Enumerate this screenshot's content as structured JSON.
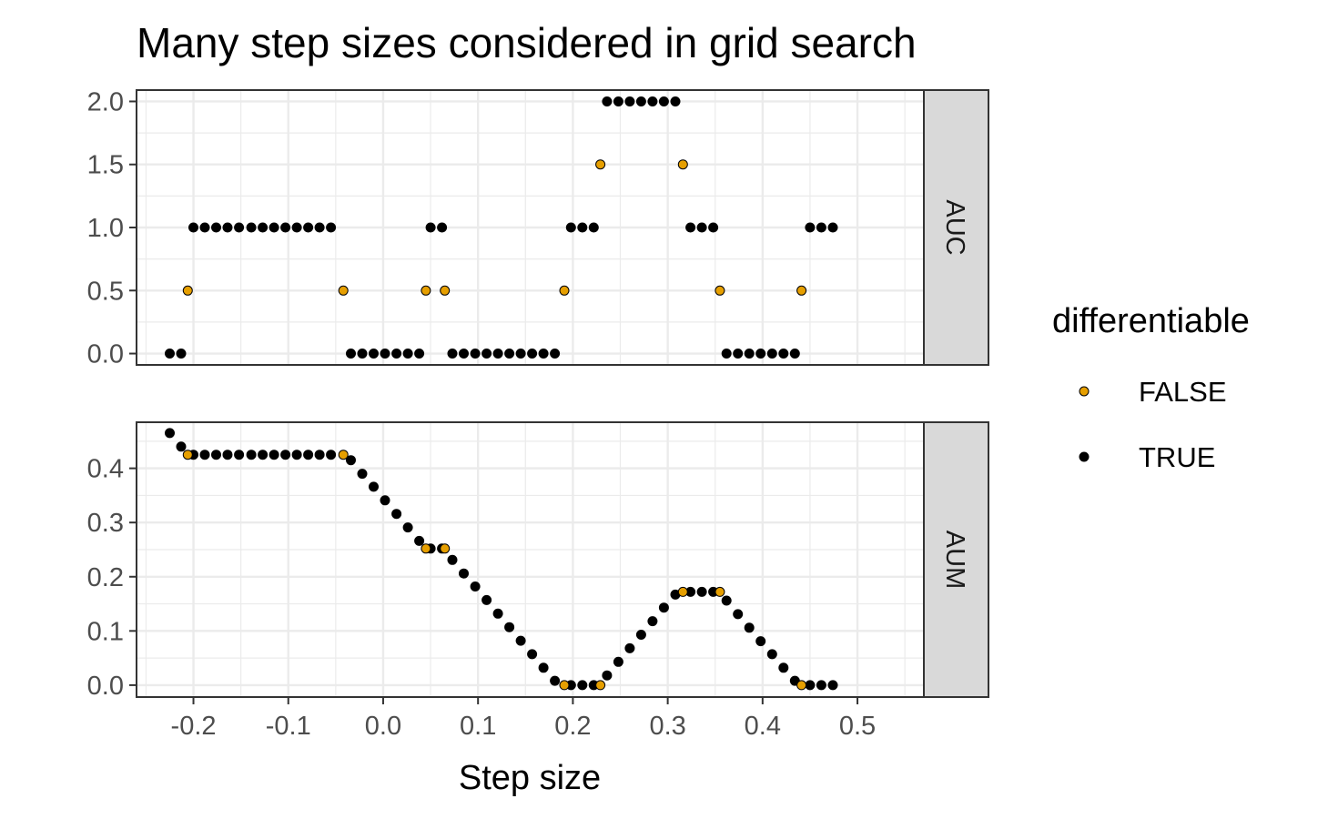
{
  "chart_data": {
    "type": "scatter",
    "title": "Many step sizes considered in grid search",
    "xlabel": "Step size",
    "xlim": [
      -0.26,
      0.57
    ],
    "x_ticks": [
      -0.2,
      -0.1,
      0.0,
      0.1,
      0.2,
      0.3,
      0.4,
      0.5
    ],
    "x_tick_labels": [
      "-0.2",
      "-0.1",
      "0.0",
      "0.1",
      "0.2",
      "0.3",
      "0.4",
      "0.5"
    ],
    "grid": true,
    "legend": {
      "title": "differentiable",
      "placement": "right",
      "entries": [
        {
          "label": "FALSE",
          "color": "#E69F00"
        },
        {
          "label": "TRUE",
          "color": "#000000"
        }
      ]
    },
    "panels": [
      {
        "strip": "AUC",
        "ylim": [
          -0.09,
          2.09
        ],
        "y_ticks": [
          0.0,
          0.5,
          1.0,
          1.5,
          2.0
        ],
        "y_tick_labels": [
          "0.0",
          "0.5",
          "1.0",
          "1.5",
          "2.0"
        ],
        "series": [
          {
            "name": "FALSE",
            "points": [
              [
                -0.206,
                0.5
              ],
              [
                -0.042,
                0.5
              ],
              [
                0.045,
                0.5
              ],
              [
                0.065,
                0.5
              ],
              [
                0.191,
                0.5
              ],
              [
                0.229,
                1.5
              ],
              [
                0.316,
                1.5
              ],
              [
                0.355,
                0.5
              ],
              [
                0.441,
                0.5
              ]
            ]
          },
          {
            "name": "TRUE",
            "points": [
              [
                -0.225,
                0.0
              ],
              [
                -0.213,
                0.0
              ],
              [
                -0.2,
                1.0
              ],
              [
                -0.188,
                1.0
              ],
              [
                -0.176,
                1.0
              ],
              [
                -0.164,
                1.0
              ],
              [
                -0.152,
                1.0
              ],
              [
                -0.139,
                1.0
              ],
              [
                -0.127,
                1.0
              ],
              [
                -0.115,
                1.0
              ],
              [
                -0.103,
                1.0
              ],
              [
                -0.091,
                1.0
              ],
              [
                -0.079,
                1.0
              ],
              [
                -0.067,
                1.0
              ],
              [
                -0.055,
                1.0
              ],
              [
                -0.034,
                0.0
              ],
              [
                -0.022,
                0.0
              ],
              [
                -0.01,
                0.0
              ],
              [
                0.002,
                0.0
              ],
              [
                0.014,
                0.0
              ],
              [
                0.026,
                0.0
              ],
              [
                0.038,
                0.0
              ],
              [
                0.05,
                1.0
              ],
              [
                0.062,
                1.0
              ],
              [
                0.073,
                0.0
              ],
              [
                0.085,
                0.0
              ],
              [
                0.097,
                0.0
              ],
              [
                0.109,
                0.0
              ],
              [
                0.121,
                0.0
              ],
              [
                0.133,
                0.0
              ],
              [
                0.145,
                0.0
              ],
              [
                0.157,
                0.0
              ],
              [
                0.169,
                0.0
              ],
              [
                0.181,
                0.0
              ],
              [
                0.198,
                1.0
              ],
              [
                0.21,
                1.0
              ],
              [
                0.222,
                1.0
              ],
              [
                0.236,
                2.0
              ],
              [
                0.248,
                2.0
              ],
              [
                0.26,
                2.0
              ],
              [
                0.272,
                2.0
              ],
              [
                0.284,
                2.0
              ],
              [
                0.296,
                2.0
              ],
              [
                0.308,
                2.0
              ],
              [
                0.324,
                1.0
              ],
              [
                0.336,
                1.0
              ],
              [
                0.348,
                1.0
              ],
              [
                0.362,
                0.0
              ],
              [
                0.374,
                0.0
              ],
              [
                0.386,
                0.0
              ],
              [
                0.398,
                0.0
              ],
              [
                0.41,
                0.0
              ],
              [
                0.422,
                0.0
              ],
              [
                0.434,
                0.0
              ],
              [
                0.45,
                1.0
              ],
              [
                0.462,
                1.0
              ],
              [
                0.474,
                1.0
              ]
            ]
          }
        ]
      },
      {
        "strip": "AUM",
        "ylim": [
          -0.022,
          0.485
        ],
        "y_ticks": [
          0.0,
          0.1,
          0.2,
          0.3,
          0.4
        ],
        "y_tick_labels": [
          "0.0",
          "0.1",
          "0.2",
          "0.3",
          "0.4"
        ],
        "series": [
          {
            "name": "FALSE",
            "points": [
              [
                -0.206,
                0.425
              ],
              [
                -0.042,
                0.425
              ],
              [
                0.045,
                0.252
              ],
              [
                0.065,
                0.252
              ],
              [
                0.191,
                0.0
              ],
              [
                0.229,
                0.0
              ],
              [
                0.316,
                0.172
              ],
              [
                0.355,
                0.172
              ],
              [
                0.441,
                0.0
              ]
            ]
          },
          {
            "name": "TRUE",
            "points": [
              [
                -0.225,
                0.465
              ],
              [
                -0.213,
                0.44
              ],
              [
                -0.2,
                0.425
              ],
              [
                -0.188,
                0.425
              ],
              [
                -0.176,
                0.425
              ],
              [
                -0.164,
                0.425
              ],
              [
                -0.152,
                0.425
              ],
              [
                -0.139,
                0.425
              ],
              [
                -0.127,
                0.425
              ],
              [
                -0.115,
                0.425
              ],
              [
                -0.103,
                0.425
              ],
              [
                -0.091,
                0.425
              ],
              [
                -0.079,
                0.425
              ],
              [
                -0.067,
                0.425
              ],
              [
                -0.055,
                0.425
              ],
              [
                -0.034,
                0.415
              ],
              [
                -0.022,
                0.39
              ],
              [
                -0.01,
                0.366
              ],
              [
                0.002,
                0.341
              ],
              [
                0.014,
                0.316
              ],
              [
                0.026,
                0.291
              ],
              [
                0.038,
                0.266
              ],
              [
                0.05,
                0.252
              ],
              [
                0.062,
                0.252
              ],
              [
                0.073,
                0.231
              ],
              [
                0.085,
                0.206
              ],
              [
                0.097,
                0.182
              ],
              [
                0.109,
                0.157
              ],
              [
                0.121,
                0.132
              ],
              [
                0.133,
                0.107
              ],
              [
                0.145,
                0.082
              ],
              [
                0.157,
                0.057
              ],
              [
                0.169,
                0.032
              ],
              [
                0.181,
                0.008
              ],
              [
                0.198,
                0.0
              ],
              [
                0.21,
                0.0
              ],
              [
                0.222,
                0.0
              ],
              [
                0.236,
                0.018
              ],
              [
                0.248,
                0.043
              ],
              [
                0.26,
                0.068
              ],
              [
                0.272,
                0.093
              ],
              [
                0.284,
                0.118
              ],
              [
                0.296,
                0.143
              ],
              [
                0.308,
                0.167
              ],
              [
                0.324,
                0.172
              ],
              [
                0.336,
                0.172
              ],
              [
                0.348,
                0.172
              ],
              [
                0.362,
                0.156
              ],
              [
                0.374,
                0.131
              ],
              [
                0.386,
                0.106
              ],
              [
                0.398,
                0.081
              ],
              [
                0.41,
                0.057
              ],
              [
                0.422,
                0.032
              ],
              [
                0.434,
                0.008
              ],
              [
                0.45,
                0.0
              ],
              [
                0.462,
                0.0
              ],
              [
                0.474,
                0.0
              ]
            ]
          }
        ]
      }
    ]
  }
}
